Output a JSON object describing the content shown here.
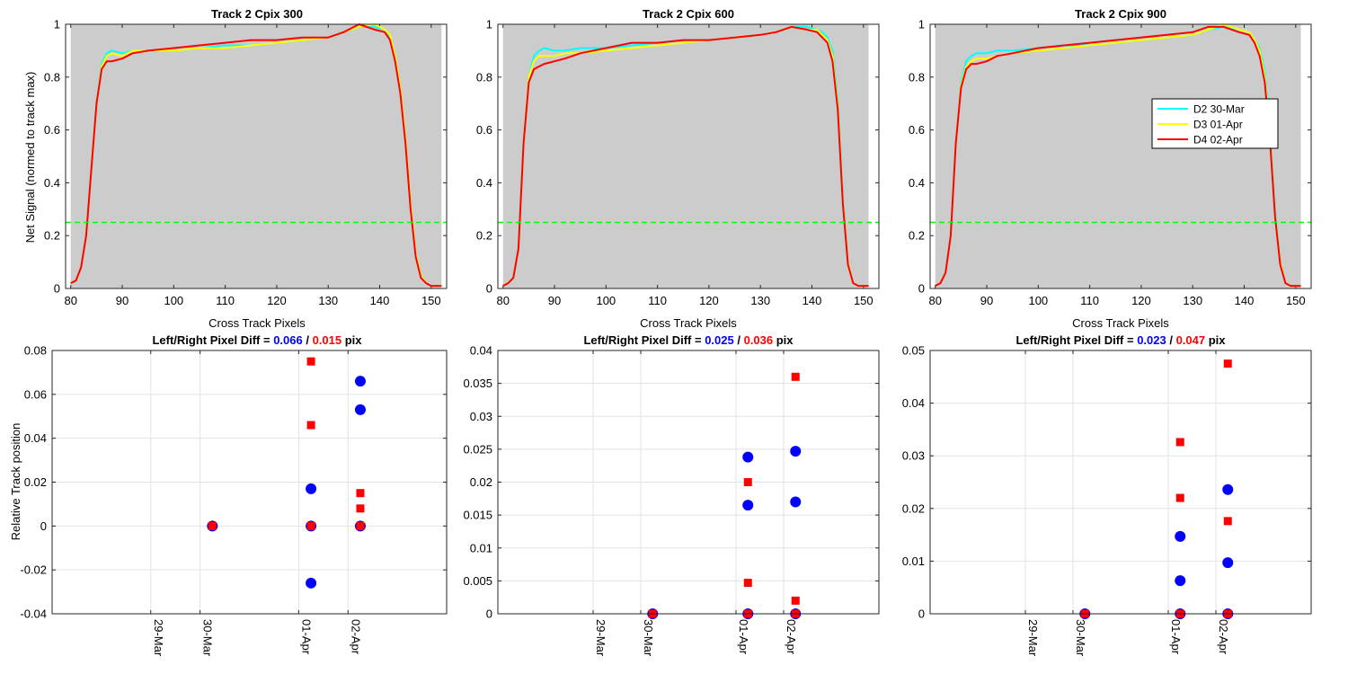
{
  "chart_data": [
    {
      "type": "line",
      "title": "Track 2  Cpix 300",
      "xlabel": "Cross Track Pixels",
      "ylabel": "Net Signal (normed to track max)",
      "xlim": [
        79,
        153
      ],
      "ylim": [
        0,
        1
      ],
      "xticks": [
        80,
        90,
        100,
        110,
        120,
        130,
        140,
        150
      ],
      "yticks": [
        0,
        0.2,
        0.4,
        0.6,
        0.8,
        1
      ],
      "background": "#cccccc",
      "shaded_x_range": [
        80,
        152
      ],
      "threshold": {
        "y": 0.25,
        "color": "#00ff00",
        "style": "dashed"
      },
      "legend": null,
      "series": [
        {
          "name": "D2 30-Mar",
          "color": "#00ffff",
          "x": [
            80,
            81,
            82,
            83,
            84,
            85,
            86,
            87,
            88,
            90,
            92,
            95,
            100,
            105,
            110,
            115,
            120,
            125,
            130,
            133,
            136,
            139,
            141,
            142,
            143,
            144,
            145,
            146,
            147,
            148,
            149,
            150,
            151,
            152
          ],
          "y": [
            0.02,
            0.03,
            0.08,
            0.2,
            0.45,
            0.7,
            0.85,
            0.89,
            0.9,
            0.89,
            0.9,
            0.9,
            0.9,
            0.91,
            0.92,
            0.92,
            0.93,
            0.94,
            0.95,
            0.97,
            0.99,
            0.99,
            0.98,
            0.95,
            0.87,
            0.75,
            0.55,
            0.3,
            0.12,
            0.05,
            0.02,
            0.01,
            0.01,
            0.01
          ]
        },
        {
          "name": "D3 01-Apr",
          "color": "#ffff00",
          "x": [
            80,
            81,
            82,
            83,
            84,
            85,
            86,
            87,
            88,
            90,
            92,
            95,
            100,
            105,
            110,
            115,
            120,
            125,
            130,
            133,
            136,
            139,
            141,
            142,
            143,
            144,
            145,
            146,
            147,
            148,
            149,
            150,
            151,
            152
          ],
          "y": [
            0.02,
            0.03,
            0.08,
            0.2,
            0.45,
            0.7,
            0.84,
            0.88,
            0.89,
            0.88,
            0.9,
            0.9,
            0.9,
            0.91,
            0.91,
            0.92,
            0.93,
            0.94,
            0.95,
            0.97,
            0.99,
            1.0,
            0.98,
            0.96,
            0.88,
            0.76,
            0.57,
            0.32,
            0.13,
            0.05,
            0.02,
            0.01,
            0.01,
            0.01
          ]
        },
        {
          "name": "D4 02-Apr",
          "color": "#ff0000",
          "x": [
            80,
            81,
            82,
            83,
            84,
            85,
            86,
            87,
            88,
            90,
            92,
            95,
            100,
            105,
            110,
            115,
            120,
            125,
            130,
            133,
            136,
            139,
            141,
            142,
            143,
            144,
            145,
            146,
            147,
            148,
            149,
            150,
            151,
            152
          ],
          "y": [
            0.02,
            0.03,
            0.08,
            0.2,
            0.45,
            0.7,
            0.83,
            0.86,
            0.86,
            0.87,
            0.89,
            0.9,
            0.91,
            0.92,
            0.93,
            0.94,
            0.94,
            0.95,
            0.95,
            0.97,
            1.0,
            0.98,
            0.97,
            0.94,
            0.86,
            0.74,
            0.55,
            0.3,
            0.12,
            0.04,
            0.02,
            0.01,
            0.01,
            0.01
          ]
        }
      ]
    },
    {
      "type": "line",
      "title": "Track 2  Cpix 600",
      "xlabel": "Cross Track Pixels",
      "ylabel": "",
      "xlim": [
        79,
        153
      ],
      "ylim": [
        0,
        1
      ],
      "xticks": [
        80,
        90,
        100,
        110,
        120,
        130,
        140,
        150
      ],
      "yticks": [
        0,
        0.2,
        0.4,
        0.6,
        0.8,
        1
      ],
      "background": "#cccccc",
      "shaded_x_range": [
        80,
        151
      ],
      "threshold": {
        "y": 0.25,
        "color": "#00ff00",
        "style": "dashed"
      },
      "legend": null,
      "series": [
        {
          "name": "D2 30-Mar",
          "color": "#00ffff",
          "x": [
            80,
            81,
            82,
            83,
            84,
            85,
            86,
            87,
            88,
            90,
            92,
            95,
            100,
            105,
            110,
            115,
            120,
            125,
            130,
            133,
            136,
            139,
            141,
            142,
            143,
            144,
            145,
            146,
            147,
            148,
            149,
            150,
            151
          ],
          "y": [
            0.01,
            0.02,
            0.04,
            0.15,
            0.55,
            0.8,
            0.88,
            0.9,
            0.91,
            0.9,
            0.9,
            0.91,
            0.91,
            0.92,
            0.93,
            0.94,
            0.94,
            0.95,
            0.96,
            0.97,
            0.99,
            0.99,
            0.98,
            0.97,
            0.95,
            0.9,
            0.72,
            0.35,
            0.1,
            0.02,
            0.01,
            0.01,
            0.01
          ]
        },
        {
          "name": "D3 01-Apr",
          "color": "#ffff00",
          "x": [
            80,
            81,
            82,
            83,
            84,
            85,
            86,
            87,
            88,
            90,
            92,
            95,
            100,
            105,
            110,
            115,
            120,
            125,
            130,
            133,
            136,
            139,
            141,
            142,
            143,
            144,
            145,
            146,
            147,
            148,
            149,
            150,
            151
          ],
          "y": [
            0.01,
            0.02,
            0.04,
            0.15,
            0.55,
            0.8,
            0.86,
            0.88,
            0.88,
            0.88,
            0.89,
            0.89,
            0.9,
            0.91,
            0.92,
            0.93,
            0.94,
            0.95,
            0.96,
            0.97,
            0.99,
            0.98,
            0.98,
            0.96,
            0.94,
            0.88,
            0.7,
            0.33,
            0.1,
            0.02,
            0.01,
            0.01,
            0.01
          ]
        },
        {
          "name": "D4 02-Apr",
          "color": "#ff0000",
          "x": [
            80,
            81,
            82,
            83,
            84,
            85,
            86,
            87,
            88,
            90,
            92,
            95,
            100,
            105,
            110,
            115,
            120,
            125,
            130,
            133,
            136,
            139,
            141,
            142,
            143,
            144,
            145,
            146,
            147,
            148,
            149,
            150,
            151
          ],
          "y": [
            0.01,
            0.02,
            0.04,
            0.15,
            0.55,
            0.78,
            0.83,
            0.84,
            0.85,
            0.86,
            0.87,
            0.89,
            0.91,
            0.93,
            0.93,
            0.94,
            0.94,
            0.95,
            0.96,
            0.97,
            0.99,
            0.98,
            0.97,
            0.95,
            0.93,
            0.86,
            0.68,
            0.32,
            0.09,
            0.02,
            0.01,
            0.01,
            0.01
          ]
        }
      ]
    },
    {
      "type": "line",
      "title": "Track 2  Cpix 900",
      "xlabel": "Cross Track Pixels",
      "ylabel": "",
      "xlim": [
        79,
        153
      ],
      "ylim": [
        0,
        1
      ],
      "xticks": [
        80,
        90,
        100,
        110,
        120,
        130,
        140,
        150
      ],
      "yticks": [
        0,
        0.2,
        0.4,
        0.6,
        0.8,
        1
      ],
      "background": "#cccccc",
      "shaded_x_range": [
        80,
        151
      ],
      "threshold": {
        "y": 0.25,
        "color": "#00ff00",
        "style": "dashed"
      },
      "legend": {
        "placement": "right",
        "entries": [
          "D2 30-Mar",
          "D3 01-Apr",
          "D4 02-Apr"
        ]
      },
      "series": [
        {
          "name": "D2 30-Mar",
          "color": "#00ffff",
          "x": [
            80,
            81,
            82,
            83,
            84,
            85,
            86,
            87,
            88,
            90,
            92,
            95,
            100,
            105,
            110,
            115,
            120,
            125,
            130,
            133,
            136,
            139,
            141,
            142,
            143,
            144,
            145,
            146,
            147,
            148,
            149,
            150,
            151
          ],
          "y": [
            0.01,
            0.02,
            0.06,
            0.2,
            0.55,
            0.78,
            0.86,
            0.88,
            0.89,
            0.89,
            0.9,
            0.9,
            0.91,
            0.92,
            0.92,
            0.93,
            0.94,
            0.95,
            0.96,
            0.98,
            0.99,
            0.98,
            0.97,
            0.94,
            0.91,
            0.82,
            0.6,
            0.3,
            0.1,
            0.02,
            0.01,
            0.01,
            0.01
          ]
        },
        {
          "name": "D3 01-Apr",
          "color": "#ffff00",
          "x": [
            80,
            81,
            82,
            83,
            84,
            85,
            86,
            87,
            88,
            90,
            92,
            95,
            100,
            105,
            110,
            115,
            120,
            125,
            130,
            133,
            136,
            139,
            141,
            142,
            143,
            144,
            145,
            146,
            147,
            148,
            149,
            150,
            151
          ],
          "y": [
            0.01,
            0.02,
            0.06,
            0.2,
            0.55,
            0.77,
            0.84,
            0.86,
            0.87,
            0.87,
            0.88,
            0.89,
            0.9,
            0.91,
            0.92,
            0.93,
            0.94,
            0.95,
            0.96,
            0.98,
            1.0,
            0.98,
            0.97,
            0.94,
            0.9,
            0.8,
            0.58,
            0.28,
            0.1,
            0.02,
            0.01,
            0.01,
            0.01
          ]
        },
        {
          "name": "D4 02-Apr",
          "color": "#ff0000",
          "x": [
            80,
            81,
            82,
            83,
            84,
            85,
            86,
            87,
            88,
            90,
            92,
            95,
            100,
            105,
            110,
            115,
            120,
            125,
            130,
            133,
            136,
            139,
            141,
            142,
            143,
            144,
            145,
            146,
            147,
            148,
            149,
            150,
            151
          ],
          "y": [
            0.01,
            0.02,
            0.06,
            0.2,
            0.55,
            0.76,
            0.83,
            0.85,
            0.85,
            0.86,
            0.88,
            0.89,
            0.91,
            0.92,
            0.93,
            0.94,
            0.95,
            0.96,
            0.97,
            0.99,
            0.99,
            0.97,
            0.96,
            0.93,
            0.88,
            0.78,
            0.56,
            0.27,
            0.09,
            0.02,
            0.01,
            0.01,
            0.01
          ]
        }
      ]
    },
    {
      "type": "scatter",
      "title_prefix": "Left/Right Pixel Diff = ",
      "title_left": "0.066",
      "title_sep": " / ",
      "title_right": "0.015",
      "title_suffix": " pix",
      "title_left_color": "#0000ff",
      "title_right_color": "#ff0000",
      "xlabel": "",
      "ylabel": "Relative Track position",
      "x_type": "date",
      "xlim": [
        "2017-03-27",
        "2017-04-04"
      ],
      "xticks": [
        "2017-03-29",
        "2017-03-30",
        "2017-04-01",
        "2017-04-02"
      ],
      "xticklabels": [
        "29-Mar",
        "30-Mar",
        "01-Apr",
        "02-Apr"
      ],
      "ylim": [
        -0.04,
        0.08
      ],
      "yticks": [
        -0.04,
        -0.02,
        0,
        0.02,
        0.04,
        0.06,
        0.08
      ],
      "yticklabels": [
        "-0.04",
        "-0.02",
        "0",
        "0.02",
        "0.04",
        "0.06",
        "0.08"
      ],
      "grid": true,
      "series": [
        {
          "name": "",
          "marker": "circle",
          "color": "#0000ff",
          "x": [
            "2017-03-30 06:00",
            "2017-04-01 06:00",
            "2017-04-01 06:00",
            "2017-04-01 06:00",
            "2017-04-02 06:00",
            "2017-04-02 06:00",
            "2017-04-02 06:00"
          ],
          "y": [
            0,
            0,
            0.017,
            -0.026,
            0,
            0.053,
            0.066
          ]
        },
        {
          "name": "",
          "marker": "square",
          "color": "#ff0000",
          "x": [
            "2017-03-30 06:00",
            "2017-04-01 06:00",
            "2017-04-01 06:00",
            "2017-04-01 06:00",
            "2017-04-02 06:00",
            "2017-04-02 06:00",
            "2017-04-02 06:00"
          ],
          "y": [
            0,
            0,
            0.046,
            0.075,
            0,
            0.008,
            0.015
          ]
        }
      ]
    },
    {
      "type": "scatter",
      "title_prefix": "Left/Right Pixel Diff = ",
      "title_left": "0.025",
      "title_sep": " / ",
      "title_right": "0.036",
      "title_suffix": " pix",
      "title_left_color": "#0000ff",
      "title_right_color": "#ff0000",
      "xlabel": "",
      "ylabel": "",
      "x_type": "date",
      "xlim": [
        "2017-03-27",
        "2017-04-04"
      ],
      "xticks": [
        "2017-03-29",
        "2017-03-30",
        "2017-04-01",
        "2017-04-02"
      ],
      "xticklabels": [
        "29-Mar",
        "30-Mar",
        "01-Apr",
        "02-Apr"
      ],
      "ylim": [
        0,
        0.04
      ],
      "yticks": [
        0,
        0.005,
        0.01,
        0.015,
        0.02,
        0.025,
        0.03,
        0.035,
        0.04
      ],
      "yticklabels": [
        "0",
        "0.005",
        "0.01",
        "0.015",
        "0.02",
        "0.025",
        "0.03",
        "0.035",
        "0.04"
      ],
      "grid": true,
      "series": [
        {
          "name": "",
          "marker": "circle",
          "color": "#0000ff",
          "x": [
            "2017-03-30 06:00",
            "2017-04-01 06:00",
            "2017-04-01 06:00",
            "2017-04-01 06:00",
            "2017-04-02 06:00",
            "2017-04-02 06:00",
            "2017-04-02 06:00"
          ],
          "y": [
            0,
            0,
            0.0165,
            0.0238,
            0,
            0.017,
            0.0247
          ]
        },
        {
          "name": "",
          "marker": "square",
          "color": "#ff0000",
          "x": [
            "2017-03-30 06:00",
            "2017-04-01 06:00",
            "2017-04-01 06:00",
            "2017-04-01 06:00",
            "2017-04-02 06:00",
            "2017-04-02 06:00",
            "2017-04-02 06:00"
          ],
          "y": [
            0,
            0,
            0.0047,
            0.02,
            0,
            0.002,
            0.036
          ]
        }
      ]
    },
    {
      "type": "scatter",
      "title_prefix": "Left/Right Pixel Diff = ",
      "title_left": "0.023",
      "title_sep": " / ",
      "title_right": "0.047",
      "title_suffix": " pix",
      "title_left_color": "#0000ff",
      "title_right_color": "#ff0000",
      "xlabel": "",
      "ylabel": "",
      "x_type": "date",
      "xlim": [
        "2017-03-27",
        "2017-04-04"
      ],
      "xticks": [
        "2017-03-29",
        "2017-03-30",
        "2017-04-01",
        "2017-04-02"
      ],
      "xticklabels": [
        "29-Mar",
        "30-Mar",
        "01-Apr",
        "02-Apr"
      ],
      "ylim": [
        0,
        0.05
      ],
      "yticks": [
        0,
        0.01,
        0.02,
        0.03,
        0.04,
        0.05
      ],
      "yticklabels": [
        "0",
        "0.01",
        "0.02",
        "0.03",
        "0.04",
        "0.05"
      ],
      "grid": true,
      "series": [
        {
          "name": "",
          "marker": "circle",
          "color": "#0000ff",
          "x": [
            "2017-03-30 06:00",
            "2017-04-01 06:00",
            "2017-04-01 06:00",
            "2017-04-01 06:00",
            "2017-04-02 06:00",
            "2017-04-02 06:00",
            "2017-04-02 06:00"
          ],
          "y": [
            0,
            0,
            0.0063,
            0.0147,
            0,
            0.0097,
            0.0236
          ]
        },
        {
          "name": "",
          "marker": "square",
          "color": "#ff0000",
          "x": [
            "2017-03-30 06:00",
            "2017-04-01 06:00",
            "2017-04-01 06:00",
            "2017-04-01 06:00",
            "2017-04-02 06:00",
            "2017-04-02 06:00",
            "2017-04-02 06:00"
          ],
          "y": [
            0,
            0,
            0.022,
            0.0326,
            0,
            0.0176,
            0.0475
          ]
        }
      ]
    }
  ]
}
